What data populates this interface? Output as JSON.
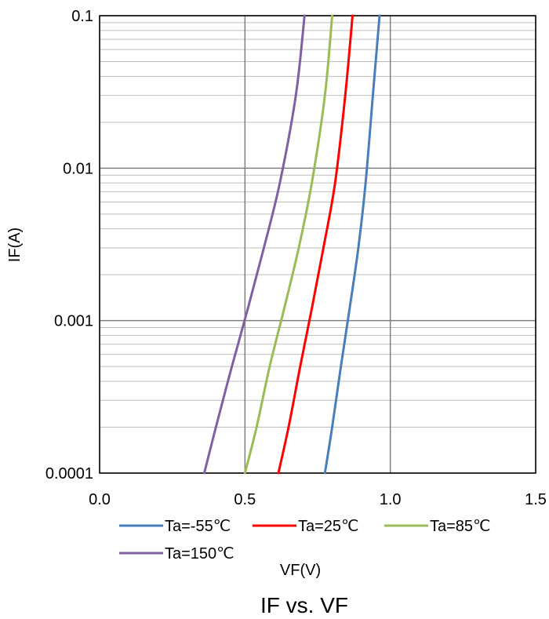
{
  "chart_data": {
    "type": "line",
    "title": "IF vs. VF",
    "xlabel": "VF(V)",
    "ylabel": "IF(A)",
    "xlim": [
      0.0,
      1.5
    ],
    "ylim": [
      0.0001,
      0.1
    ],
    "y_scale": "log",
    "grid": true,
    "legend_position": "bottom",
    "x_ticks": [
      "0.0",
      "0.5",
      "1.0",
      "1.5"
    ],
    "y_ticks": [
      "0.1",
      "0.01",
      "0.001",
      "0.0001"
    ],
    "series": [
      {
        "name": "Ta=-55℃",
        "color": "#4a7ebb",
        "x": [
          0.775,
          0.8,
          0.83,
          0.86,
          0.89,
          0.915,
          0.94,
          0.963
        ],
        "y": [
          0.0001,
          0.0002,
          0.0005,
          0.0012,
          0.003,
          0.008,
          0.03,
          0.1
        ]
      },
      {
        "name": "Ta=25℃",
        "color": "#ff0000",
        "x": [
          0.615,
          0.65,
          0.69,
          0.73,
          0.77,
          0.81,
          0.845,
          0.87
        ],
        "y": [
          0.0001,
          0.0002,
          0.0005,
          0.0012,
          0.003,
          0.008,
          0.03,
          0.1
        ]
      },
      {
        "name": "Ta=85℃",
        "color": "#9bbb59",
        "x": [
          0.5,
          0.54,
          0.585,
          0.635,
          0.685,
          0.73,
          0.775,
          0.8
        ],
        "y": [
          0.0001,
          0.0002,
          0.0005,
          0.0012,
          0.003,
          0.008,
          0.03,
          0.1
        ]
      },
      {
        "name": "Ta=150℃",
        "color": "#7f60a0",
        "x": [
          0.36,
          0.4,
          0.455,
          0.51,
          0.565,
          0.62,
          0.675,
          0.705
        ],
        "y": [
          0.0001,
          0.0002,
          0.0005,
          0.0012,
          0.003,
          0.008,
          0.03,
          0.1
        ]
      }
    ]
  }
}
